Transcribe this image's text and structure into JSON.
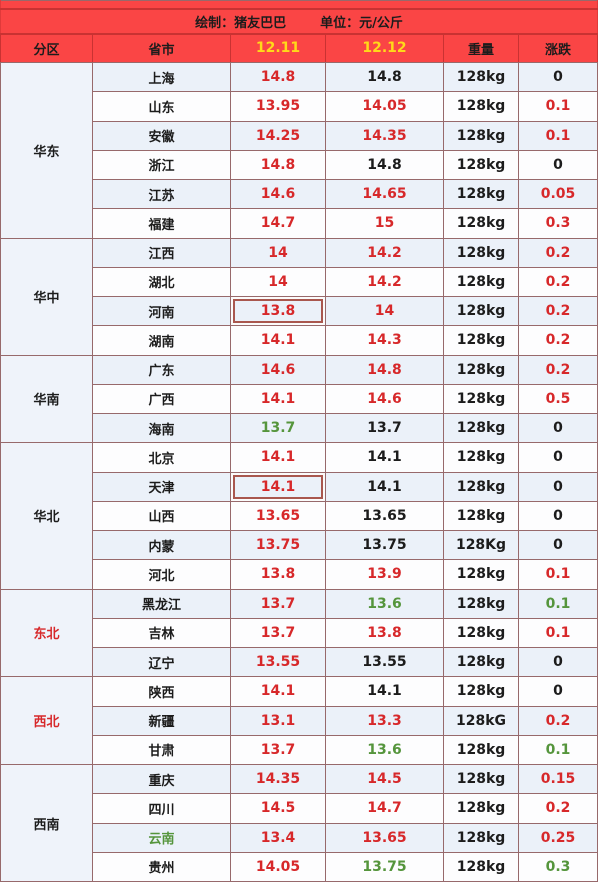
{
  "header": {
    "credit": "绘制：猪友巴巴",
    "unit": "单位：元/公斤"
  },
  "palette": {
    "header_bg": "#fa4545",
    "header_line": "#c93232",
    "date_yellow": "#ffd919",
    "grid": "#97696b",
    "row_blue": "#ebf1f9",
    "row_white": "#fdfdfe",
    "region_bg": "#eff3fa",
    "box_outline": "#a9574e",
    "text": {
      "black": "#1c1c1c",
      "red": "#d7282a",
      "green": "#55953c"
    }
  },
  "chart_data": {
    "type": "table",
    "title": "绘制：猪友巴巴  单位：元/公斤",
    "columns": [
      "分区",
      "省市",
      "12.11",
      "12.12",
      "重量",
      "涨跌"
    ],
    "regions": [
      {
        "name": "华东",
        "name_color": "black",
        "rows": [
          {
            "province": "上海",
            "province_color": "black",
            "d1": "14.8",
            "d1_color": "red",
            "d2": "14.8",
            "d2_color": "black",
            "weight": "128kg",
            "change": "0",
            "change_color": "black"
          },
          {
            "province": "山东",
            "province_color": "black",
            "d1": "13.95",
            "d1_color": "red",
            "d2": "14.05",
            "d2_color": "red",
            "weight": "128kg",
            "change": "0.1",
            "change_color": "red"
          },
          {
            "province": "安徽",
            "province_color": "black",
            "d1": "14.25",
            "d1_color": "red",
            "d2": "14.35",
            "d2_color": "red",
            "weight": "128kg",
            "change": "0.1",
            "change_color": "red"
          },
          {
            "province": "浙江",
            "province_color": "black",
            "d1": "14.8",
            "d1_color": "red",
            "d2": "14.8",
            "d2_color": "black",
            "weight": "128kg",
            "change": "0",
            "change_color": "black"
          },
          {
            "province": "江苏",
            "province_color": "black",
            "d1": "14.6",
            "d1_color": "red",
            "d2": "14.65",
            "d2_color": "red",
            "weight": "128kg",
            "change": "0.05",
            "change_color": "red"
          },
          {
            "province": "福建",
            "province_color": "black",
            "d1": "14.7",
            "d1_color": "red",
            "d2": "15",
            "d2_color": "red",
            "weight": "128kg",
            "change": "0.3",
            "change_color": "red"
          }
        ]
      },
      {
        "name": "华中",
        "name_color": "black",
        "rows": [
          {
            "province": "江西",
            "province_color": "black",
            "d1": "14",
            "d1_color": "red",
            "d2": "14.2",
            "d2_color": "red",
            "weight": "128kg",
            "change": "0.2",
            "change_color": "red"
          },
          {
            "province": "湖北",
            "province_color": "black",
            "d1": "14",
            "d1_color": "red",
            "d2": "14.2",
            "d2_color": "red",
            "weight": "128kg",
            "change": "0.2",
            "change_color": "red"
          },
          {
            "province": "河南",
            "province_color": "black",
            "d1": "13.8",
            "d1_color": "red",
            "d1_boxed": true,
            "d2": "14",
            "d2_color": "red",
            "weight": "128kg",
            "change": "0.2",
            "change_color": "red"
          },
          {
            "province": "湖南",
            "province_color": "black",
            "d1": "14.1",
            "d1_color": "red",
            "d2": "14.3",
            "d2_color": "red",
            "weight": "128kg",
            "change": "0.2",
            "change_color": "red"
          }
        ]
      },
      {
        "name": "华南",
        "name_color": "black",
        "rows": [
          {
            "province": "广东",
            "province_color": "black",
            "d1": "14.6",
            "d1_color": "red",
            "d2": "14.8",
            "d2_color": "red",
            "weight": "128kg",
            "change": "0.2",
            "change_color": "red"
          },
          {
            "province": "广西",
            "province_color": "black",
            "d1": "14.1",
            "d1_color": "red",
            "d2": "14.6",
            "d2_color": "red",
            "weight": "128kg",
            "change": "0.5",
            "change_color": "red"
          },
          {
            "province": "海南",
            "province_color": "black",
            "d1": "13.7",
            "d1_color": "green",
            "d2": "13.7",
            "d2_color": "black",
            "weight": "128kg",
            "change": "0",
            "change_color": "black"
          }
        ]
      },
      {
        "name": "华北",
        "name_color": "black",
        "rows": [
          {
            "province": "北京",
            "province_color": "black",
            "d1": "14.1",
            "d1_color": "red",
            "d2": "14.1",
            "d2_color": "black",
            "weight": "128kg",
            "change": "0",
            "change_color": "black"
          },
          {
            "province": "天津",
            "province_color": "black",
            "d1": "14.1",
            "d1_color": "red",
            "d1_boxed": true,
            "d2": "14.1",
            "d2_color": "black",
            "weight": "128kg",
            "change": "0",
            "change_color": "black"
          },
          {
            "province": "山西",
            "province_color": "black",
            "d1": "13.65",
            "d1_color": "red",
            "d2": "13.65",
            "d2_color": "black",
            "weight": "128kg",
            "change": "0",
            "change_color": "black"
          },
          {
            "province": "内蒙",
            "province_color": "black",
            "d1": "13.75",
            "d1_color": "red",
            "d2": "13.75",
            "d2_color": "black",
            "weight": "128Kg",
            "change": "0",
            "change_color": "black"
          },
          {
            "province": "河北",
            "province_color": "black",
            "d1": "13.8",
            "d1_color": "red",
            "d2": "13.9",
            "d2_color": "red",
            "weight": "128kg",
            "change": "0.1",
            "change_color": "red"
          }
        ]
      },
      {
        "name": "东北",
        "name_color": "red",
        "rows": [
          {
            "province": "黑龙江",
            "province_color": "black",
            "d1": "13.7",
            "d1_color": "red",
            "d2": "13.6",
            "d2_color": "green",
            "weight": "128kg",
            "change": "0.1",
            "change_color": "green"
          },
          {
            "province": "吉林",
            "province_color": "black",
            "d1": "13.7",
            "d1_color": "red",
            "d2": "13.8",
            "d2_color": "red",
            "weight": "128kg",
            "change": "0.1",
            "change_color": "red"
          },
          {
            "province": "辽宁",
            "province_color": "black",
            "d1": "13.55",
            "d1_color": "red",
            "d2": "13.55",
            "d2_color": "black",
            "weight": "128kg",
            "change": "0",
            "change_color": "black"
          }
        ]
      },
      {
        "name": "西北",
        "name_color": "red",
        "rows": [
          {
            "province": "陕西",
            "province_color": "black",
            "d1": "14.1",
            "d1_color": "red",
            "d2": "14.1",
            "d2_color": "black",
            "weight": "128kg",
            "change": "0",
            "change_color": "black"
          },
          {
            "province": "新疆",
            "province_color": "black",
            "d1": "13.1",
            "d1_color": "red",
            "d2": "13.3",
            "d2_color": "red",
            "weight": "128kG",
            "change": "0.2",
            "change_color": "red"
          },
          {
            "province": "甘肃",
            "province_color": "black",
            "d1": "13.7",
            "d1_color": "red",
            "d2": "13.6",
            "d2_color": "green",
            "weight": "128kg",
            "change": "0.1",
            "change_color": "green"
          }
        ]
      },
      {
        "name": "西南",
        "name_color": "black",
        "rows": [
          {
            "province": "重庆",
            "province_color": "black",
            "d1": "14.35",
            "d1_color": "red",
            "d2": "14.5",
            "d2_color": "red",
            "weight": "128kg",
            "change": "0.15",
            "change_color": "red"
          },
          {
            "province": "四川",
            "province_color": "black",
            "d1": "14.5",
            "d1_color": "red",
            "d2": "14.7",
            "d2_color": "red",
            "weight": "128kg",
            "change": "0.2",
            "change_color": "red"
          },
          {
            "province": "云南",
            "province_color": "green",
            "d1": "13.4",
            "d1_color": "red",
            "d2": "13.65",
            "d2_color": "red",
            "weight": "128kg",
            "change": "0.25",
            "change_color": "red"
          },
          {
            "province": "贵州",
            "province_color": "black",
            "d1": "14.05",
            "d1_color": "red",
            "d2": "13.75",
            "d2_color": "green",
            "weight": "128kg",
            "change": "0.3",
            "change_color": "green"
          }
        ]
      }
    ]
  }
}
